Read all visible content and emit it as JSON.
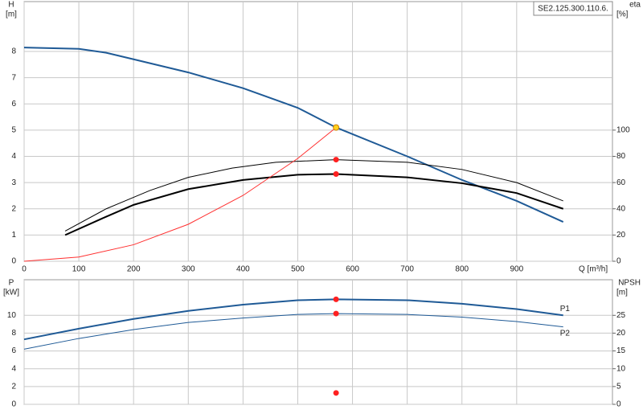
{
  "chart_data": [
    {
      "type": "line",
      "label_box": "SE2.125.300.110.6.",
      "y_label": "H",
      "y_unit": "[m]",
      "y2_label": "eta",
      "y2_unit": "[%]",
      "x_label": "Q [m³/h]",
      "xlim": [
        0,
        1075
      ],
      "xticks": [
        0,
        100,
        200,
        300,
        400,
        500,
        600,
        700,
        800,
        900
      ],
      "ylim": [
        0,
        9.9
      ],
      "yticks": [
        0,
        1,
        2,
        3,
        4,
        5,
        6,
        7,
        8
      ],
      "y2lim": [
        0,
        198
      ],
      "y2ticks": [
        0,
        20,
        40,
        60,
        80,
        100
      ],
      "grid": true,
      "series": [
        {
          "color": "#1f5a96",
          "style": "thick",
          "x": [
            0,
            100,
            150,
            200,
            300,
            400,
            500,
            570,
            700,
            800,
            900,
            985
          ],
          "values": [
            8.15,
            8.1,
            7.95,
            7.7,
            7.2,
            6.6,
            5.85,
            5.1,
            4.0,
            3.1,
            2.3,
            1.5
          ]
        },
        {
          "color": "#000000",
          "style": "thin",
          "axis": "y2",
          "x": [
            75,
            150,
            230,
            300,
            380,
            460,
            570,
            700,
            800,
            900,
            985
          ],
          "values": [
            23,
            40,
            54,
            64,
            71,
            75.5,
            77.5,
            75.5,
            70,
            60,
            46
          ]
        },
        {
          "color": "#000000",
          "style": "thick",
          "axis": "y2",
          "x": [
            75,
            150,
            200,
            300,
            400,
            500,
            570,
            700,
            800,
            900,
            985
          ],
          "values": [
            20,
            34,
            43,
            55,
            62,
            66,
            66.5,
            64,
            59.5,
            52,
            40
          ]
        },
        {
          "color": "#ff3030",
          "style": "thin",
          "x": [
            0,
            100,
            200,
            300,
            400,
            500,
            570
          ],
          "values": [
            0,
            0.16,
            0.63,
            1.41,
            2.51,
            3.92,
            5.1
          ]
        }
      ],
      "points": [
        {
          "x": 570,
          "y": 5.1,
          "color": "#ffd21f"
        },
        {
          "x": 570,
          "y": 77.5,
          "color": "#ff2020",
          "axis": "y2"
        },
        {
          "x": 570,
          "y": 66.5,
          "color": "#ff2020",
          "axis": "y2"
        }
      ]
    },
    {
      "type": "line",
      "y_label": "P",
      "y_unit": "[kW]",
      "y2_label": "NPSH",
      "y2_unit": "[m]",
      "xlim": [
        0,
        1075
      ],
      "xticks": [
        0,
        100,
        200,
        300,
        400,
        500,
        600,
        700,
        800,
        900
      ],
      "ylim": [
        0,
        14
      ],
      "yticks": [
        0,
        2,
        4,
        6,
        8,
        10
      ],
      "y2lim": [
        0,
        35
      ],
      "y2ticks": [
        0,
        5,
        10,
        15,
        20,
        25
      ],
      "grid": true,
      "series": [
        {
          "name": "P1",
          "color": "#1f5a96",
          "style": "thick",
          "x": [
            0,
            100,
            200,
            300,
            400,
            500,
            570,
            700,
            800,
            900,
            985
          ],
          "values": [
            7.3,
            8.5,
            9.6,
            10.5,
            11.2,
            11.7,
            11.8,
            11.7,
            11.3,
            10.7,
            10.0
          ]
        },
        {
          "name": "P2",
          "color": "#1f5a96",
          "style": "thin",
          "x": [
            0,
            100,
            200,
            300,
            400,
            500,
            570,
            700,
            800,
            900,
            985
          ],
          "values": [
            6.2,
            7.4,
            8.4,
            9.2,
            9.7,
            10.1,
            10.2,
            10.1,
            9.8,
            9.3,
            8.7
          ]
        }
      ],
      "points": [
        {
          "x": 570,
          "y": 11.8,
          "color": "#ff2020"
        },
        {
          "x": 570,
          "y": 10.2,
          "color": "#ff2020"
        },
        {
          "x": 570,
          "y": 3.2,
          "color": "#ff2020",
          "axis": "y2"
        }
      ]
    }
  ]
}
